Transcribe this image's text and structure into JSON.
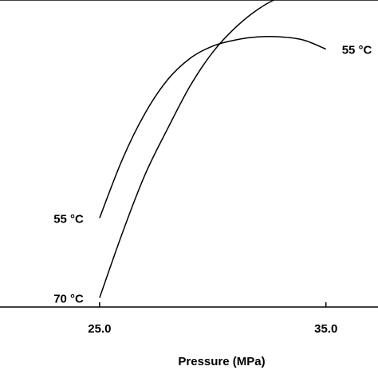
{
  "chart_data": {
    "type": "line",
    "title": "",
    "xlabel": "Pressure (MPa)",
    "ylabel": "",
    "xlim": [
      20.6,
      37.3
    ],
    "ylim": [
      0,
      100
    ],
    "grid": false,
    "legend": "none",
    "x_ticks": [
      {
        "value": 25.0,
        "label": "25.0"
      },
      {
        "value": 35.0,
        "label": "35.0"
      }
    ],
    "series": [
      {
        "name": "55 °C",
        "color": "#000000",
        "start_label": "55 °C",
        "end_label": "55 °C",
        "x": [
          25.0,
          26.0,
          27.0,
          28.0,
          29.0,
          30.0,
          31.0,
          32.0,
          33.0,
          34.0,
          35.0
        ],
        "y": [
          29,
          48,
          63,
          74,
          81,
          85,
          87,
          88,
          88,
          87,
          84
        ]
      },
      {
        "name": "70 °C",
        "color": "#000000",
        "start_label": "70 °C",
        "end_label": "70 °C",
        "x": [
          25.0,
          26.0,
          27.0,
          28.0,
          29.0,
          30.0,
          31.0,
          32.0,
          33.0,
          34.0,
          35.0
        ],
        "y": [
          3,
          24,
          43,
          58,
          72,
          83,
          91,
          97,
          101,
          103,
          104
        ]
      }
    ]
  }
}
